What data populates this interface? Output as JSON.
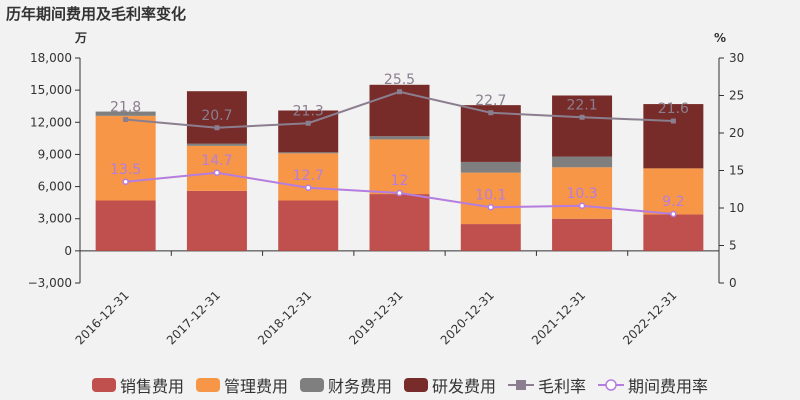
{
  "title": "历年期间费用及毛利率变化",
  "chart_data": {
    "type": "bar",
    "stacked": true,
    "categories": [
      "2016-12-31",
      "2017-12-31",
      "2018-12-31",
      "2019-12-31",
      "2020-12-31",
      "2021-12-31",
      "2022-12-31"
    ],
    "left_axis": {
      "unit": "万",
      "min": -3000,
      "max": 18000,
      "ticks": [
        "−3,000",
        "0",
        "3,000",
        "6,000",
        "9,000",
        "12,000",
        "15,000",
        "18,000"
      ]
    },
    "right_axis": {
      "unit": "%",
      "min": 0,
      "max": 30,
      "ticks": [
        "0",
        "5",
        "10",
        "15",
        "20",
        "25",
        "30"
      ]
    },
    "bar_series": [
      {
        "name": "销售费用",
        "color": "#c0504d",
        "values": [
          4700,
          5600,
          4700,
          5300,
          2500,
          3000,
          3400
        ]
      },
      {
        "name": "管理费用",
        "color": "#f79646",
        "values": [
          7900,
          4200,
          4400,
          5100,
          4800,
          4800,
          4300
        ]
      },
      {
        "name": "财务费用",
        "color": "#7f7f7f",
        "values": [
          400,
          200,
          100,
          300,
          1000,
          1000,
          0
        ]
      },
      {
        "name": "研发费用",
        "color": "#772c2a",
        "values": [
          0,
          4900,
          3900,
          4800,
          5300,
          5700,
          6000
        ]
      }
    ],
    "line_series": [
      {
        "name": "毛利率",
        "color": "#8b7e8e",
        "marker": "square",
        "values": [
          21.8,
          20.7,
          21.3,
          25.5,
          22.7,
          22.1,
          21.6
        ],
        "labels": [
          "21.8",
          "20.7",
          "21.3",
          "25.5",
          "22.7",
          "22.1",
          "21.6"
        ]
      },
      {
        "name": "期间费用率",
        "color": "#b57ddf",
        "marker": "circle",
        "values": [
          13.5,
          14.7,
          12.7,
          12.0,
          10.1,
          10.3,
          9.2
        ],
        "labels": [
          "13.5",
          "14.7",
          "12.7",
          "12",
          "10.1",
          "10.3",
          "9.2"
        ]
      }
    ],
    "grid": false,
    "legend_position": "bottom"
  }
}
